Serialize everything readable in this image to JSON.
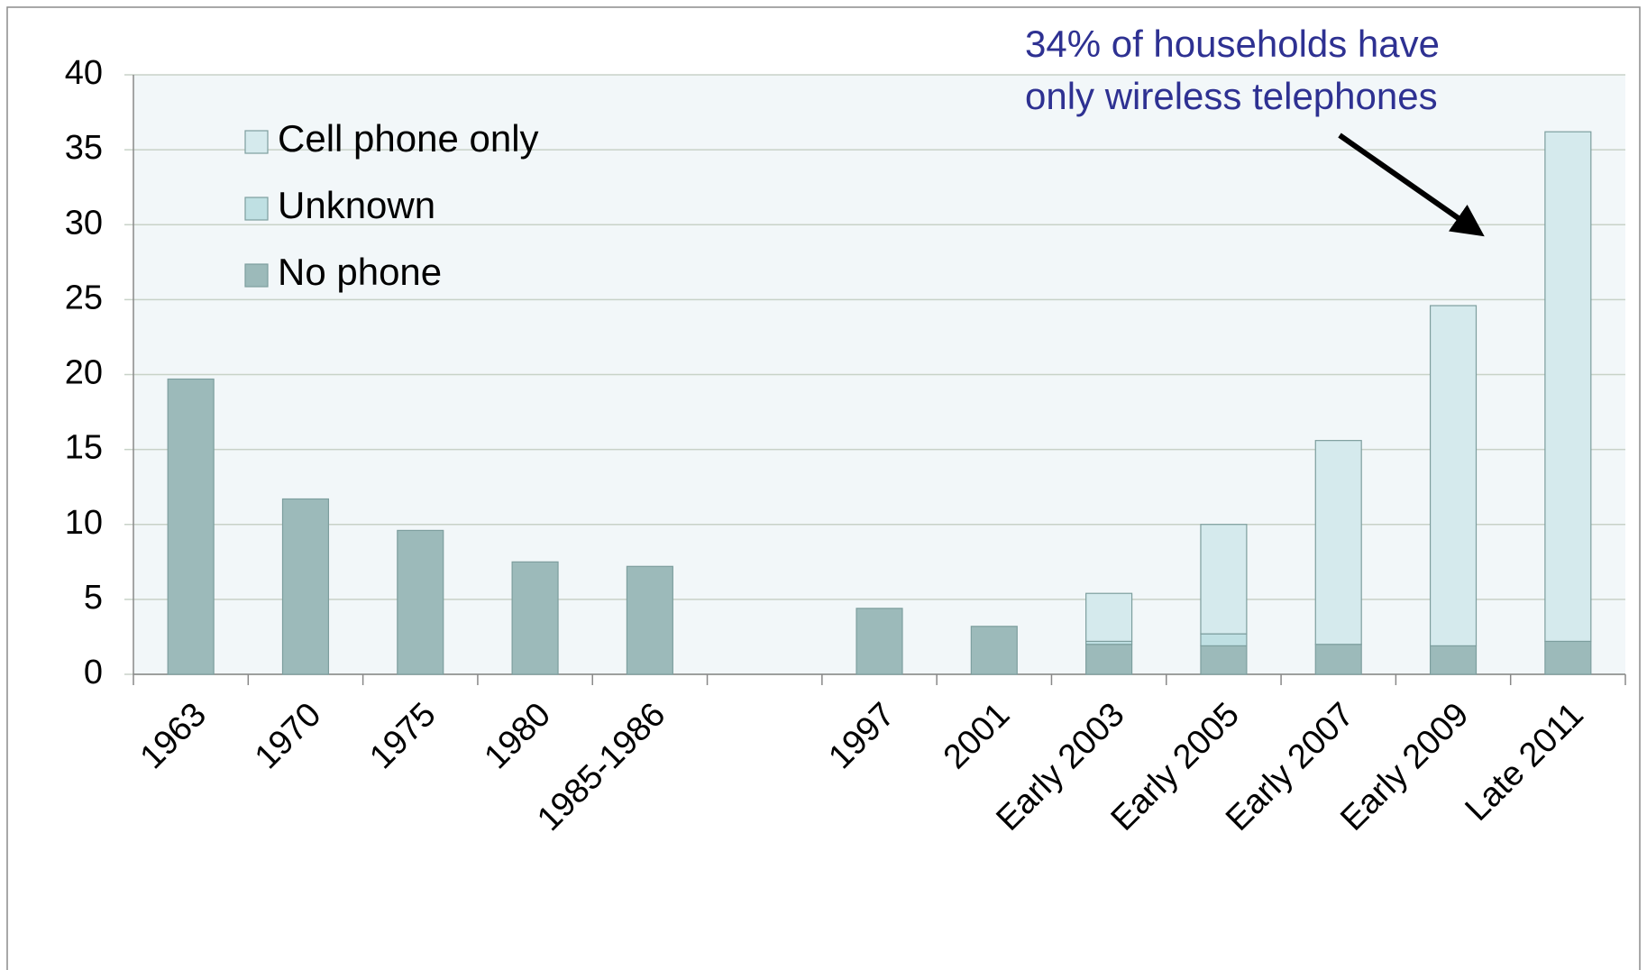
{
  "chart_data": {
    "type": "stacked_bar",
    "categories": [
      "1963",
      "1970",
      "1975",
      "1980",
      "1985-1986",
      null,
      "1997",
      "2001",
      "Early 2003",
      "Early 2005",
      "Early 2007",
      "Early 2009",
      "Late 2011"
    ],
    "series": [
      {
        "name": "No phone",
        "color": "#9cbaba",
        "values": [
          19.7,
          11.7,
          9.6,
          7.5,
          7.2,
          null,
          4.4,
          3.2,
          2.0,
          1.9,
          2.0,
          1.9,
          2.2
        ]
      },
      {
        "name": "Unknown",
        "color": "#bfe0e3",
        "values": [
          null,
          null,
          null,
          null,
          null,
          null,
          null,
          null,
          0.2,
          0.8,
          null,
          null,
          null
        ]
      },
      {
        "name": "Cell phone only",
        "color": "#d5eaed",
        "values": [
          null,
          null,
          null,
          null,
          null,
          null,
          null,
          null,
          3.2,
          7.3,
          13.6,
          22.7,
          34.0
        ]
      }
    ],
    "ylim": [
      0,
      40
    ],
    "yticks": [
      0,
      5,
      10,
      15,
      20,
      25,
      30,
      35,
      40
    ],
    "grid": true,
    "annotation": [
      "34% of households have",
      "only wireless telephones"
    ],
    "legend": "upper-left"
  }
}
